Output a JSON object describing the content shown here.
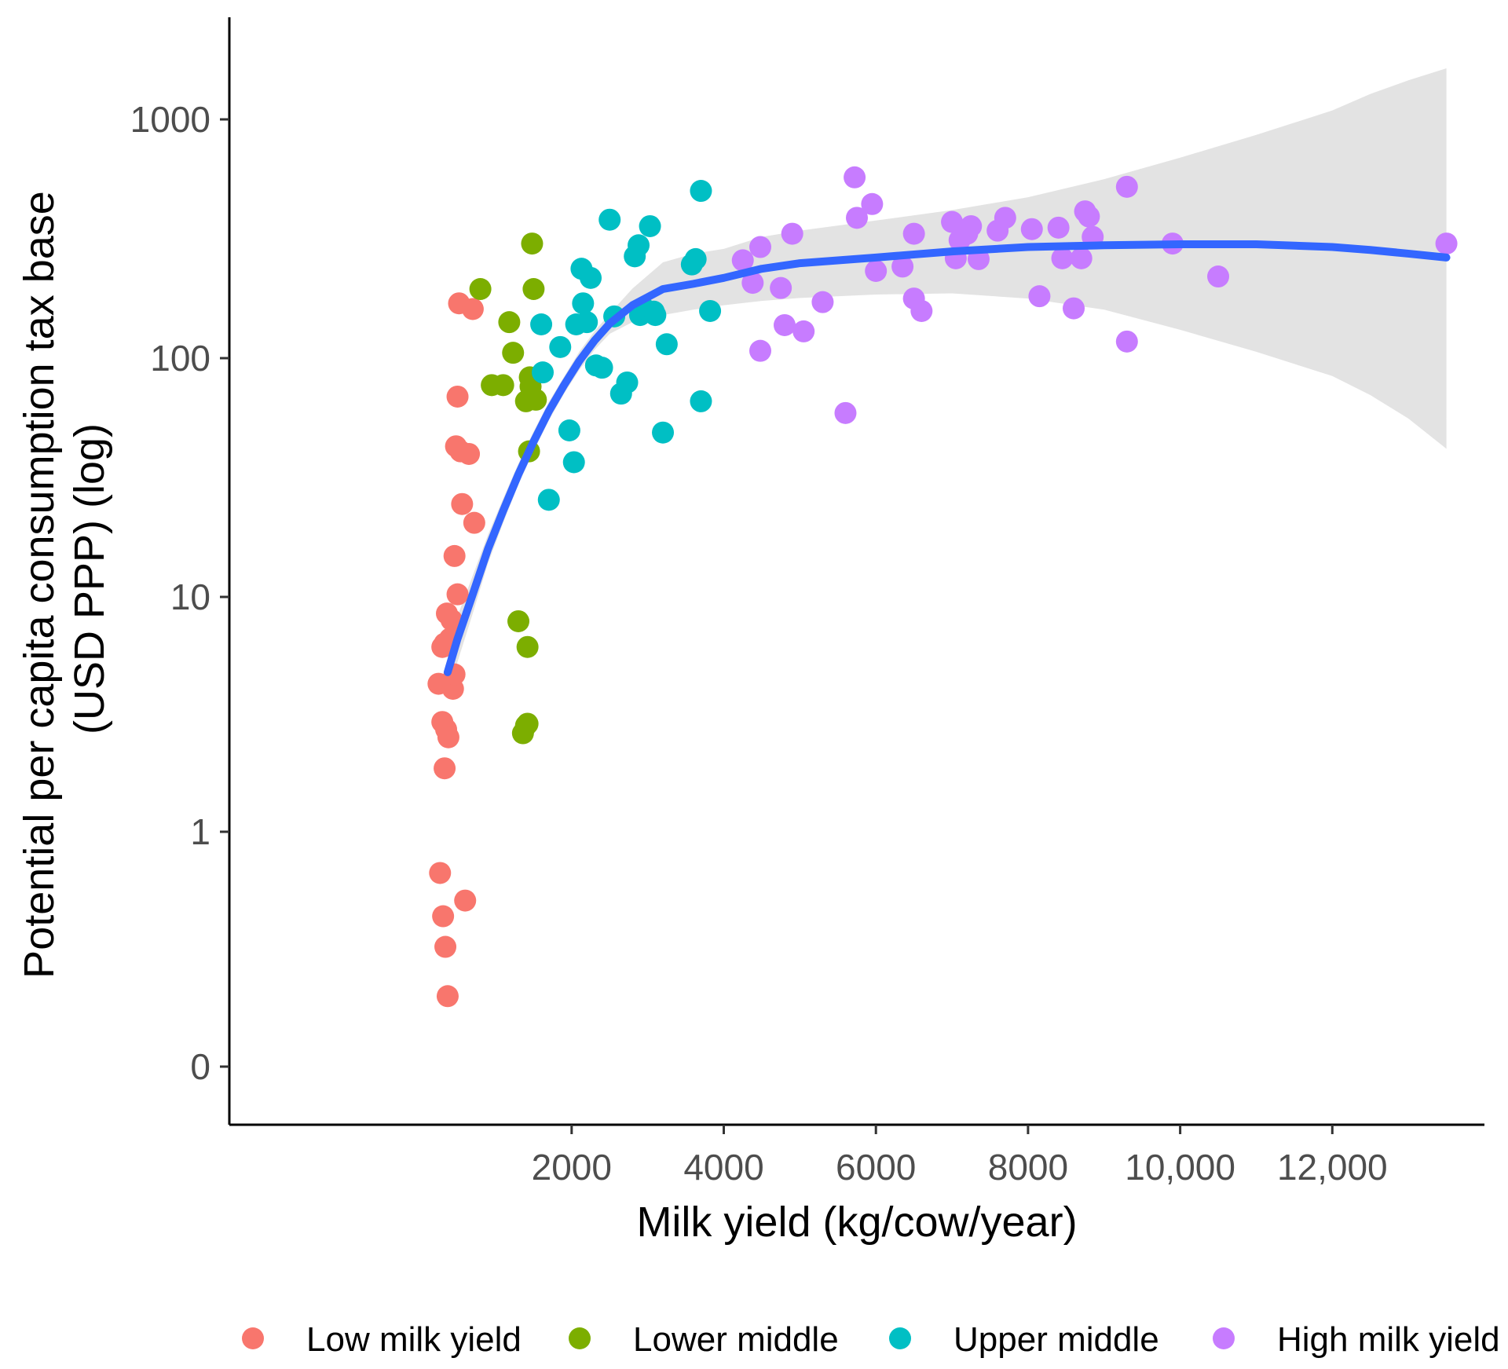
{
  "chart_data": {
    "type": "scatter",
    "xlabel": "Milk yield (kg/cow/year)",
    "ylabel": "Potential per capita consumption tax base (USD PPP) (log)",
    "ylabel_lines": [
      "Potential per capita consumption tax base",
      "(USD PPP) (log)"
    ],
    "xlim": [
      -2500,
      14000
    ],
    "x_ticks": [
      2000,
      4000,
      6000,
      8000,
      10000,
      12000
    ],
    "x_tick_labels": [
      "2000",
      "4000",
      "6000",
      "8000",
      "10,000",
      "12,000"
    ],
    "y_scale": "log",
    "y_ticks": [
      0,
      1,
      10,
      100,
      1000
    ],
    "y_tick_labels": [
      "0",
      "1",
      "10",
      "100",
      "1000"
    ],
    "grid": false,
    "legend_position": "bottom",
    "series": [
      {
        "name": "Low milk yield",
        "color": "#f8766d",
        "points": [
          [
            250,
            4.2
          ],
          [
            270,
            0.68
          ],
          [
            300,
            6.0
          ],
          [
            300,
            2.9
          ],
          [
            310,
            0.41
          ],
          [
            330,
            1.85
          ],
          [
            340,
            0.26
          ],
          [
            350,
            2.7
          ],
          [
            360,
            8.3
          ],
          [
            370,
            0.09
          ],
          [
            380,
            2.5
          ],
          [
            400,
            6.5
          ],
          [
            420,
            7.8
          ],
          [
            440,
            4.0
          ],
          [
            460,
            4.6
          ],
          [
            480,
            42
          ],
          [
            500,
            10
          ],
          [
            500,
            68
          ],
          [
            520,
            168
          ],
          [
            540,
            40
          ],
          [
            560,
            24
          ],
          [
            600,
            0.5
          ],
          [
            650,
            39
          ],
          [
            700,
            159
          ],
          [
            720,
            20
          ],
          [
            460,
            14.5
          ],
          [
            330,
            6.2
          ]
        ]
      },
      {
        "name": "Lower middle",
        "color": "#7cae00",
        "points": [
          [
            800,
            193
          ],
          [
            950,
            76
          ],
          [
            1100,
            76
          ],
          [
            1180,
            140
          ],
          [
            1230,
            104
          ],
          [
            1300,
            7.7
          ],
          [
            1360,
            2.6
          ],
          [
            1400,
            65
          ],
          [
            1420,
            2.85
          ],
          [
            1420,
            6.0
          ],
          [
            1440,
            40
          ],
          [
            1450,
            82
          ],
          [
            1460,
            75
          ],
          [
            1480,
            300
          ],
          [
            1500,
            193
          ],
          [
            1530,
            66
          ],
          [
            1400,
            2.8
          ]
        ]
      },
      {
        "name": "Upper middle",
        "color": "#00bfc4",
        "points": [
          [
            1600,
            137
          ],
          [
            1620,
            86
          ],
          [
            1700,
            25
          ],
          [
            1850,
            110
          ],
          [
            1970,
            49
          ],
          [
            2030,
            36
          ],
          [
            2060,
            137
          ],
          [
            2130,
            235
          ],
          [
            2150,
            168
          ],
          [
            2250,
            215
          ],
          [
            2320,
            92
          ],
          [
            2400,
            90
          ],
          [
            2500,
            378
          ],
          [
            2560,
            148
          ],
          [
            2650,
            70
          ],
          [
            2730,
            78
          ],
          [
            2830,
            265
          ],
          [
            2880,
            295
          ],
          [
            2900,
            150
          ],
          [
            3030,
            355
          ],
          [
            3080,
            155
          ],
          [
            3200,
            48
          ],
          [
            3250,
            113
          ],
          [
            3580,
            245
          ],
          [
            3630,
            258
          ],
          [
            3700,
            500
          ],
          [
            3700,
            65
          ],
          [
            3820,
            156
          ],
          [
            2950,
            160
          ],
          [
            3100,
            150
          ],
          [
            2200,
            140
          ]
        ]
      },
      {
        "name": "High milk yield",
        "color": "#c77cff",
        "points": [
          [
            4250,
            255
          ],
          [
            4380,
            205
          ],
          [
            4480,
            290
          ],
          [
            4480,
            106
          ],
          [
            4750,
            195
          ],
          [
            4800,
            136
          ],
          [
            4900,
            330
          ],
          [
            5050,
            128
          ],
          [
            5300,
            170
          ],
          [
            5600,
            58
          ],
          [
            5720,
            570
          ],
          [
            5750,
            385
          ],
          [
            5950,
            440
          ],
          [
            6000,
            230
          ],
          [
            6350,
            240
          ],
          [
            6500,
            330
          ],
          [
            6500,
            176
          ],
          [
            6600,
            156
          ],
          [
            7000,
            370
          ],
          [
            7050,
            260
          ],
          [
            7100,
            310
          ],
          [
            7200,
            330
          ],
          [
            7250,
            355
          ],
          [
            7350,
            258
          ],
          [
            7600,
            340
          ],
          [
            7700,
            385
          ],
          [
            8050,
            345
          ],
          [
            8150,
            180
          ],
          [
            8400,
            350
          ],
          [
            8450,
            260
          ],
          [
            8600,
            160
          ],
          [
            8700,
            260
          ],
          [
            8750,
            410
          ],
          [
            8800,
            390
          ],
          [
            8850,
            320
          ],
          [
            9300,
            520
          ],
          [
            9300,
            116
          ],
          [
            9900,
            300
          ],
          [
            10500,
            218
          ],
          [
            13500,
            300
          ]
        ]
      }
    ],
    "fit_line": {
      "color": "#3366ff",
      "x": [
        370,
        500,
        700,
        900,
        1100,
        1300,
        1500,
        1700,
        1900,
        2100,
        2300,
        2500,
        2800,
        3200,
        3600,
        4000,
        4500,
        5000,
        6000,
        7000,
        8000,
        9000,
        10000,
        11000,
        12000,
        12500,
        13000,
        13500
      ],
      "y": [
        4.7,
        6.5,
        10,
        15.5,
        22.5,
        32,
        44,
        59,
        76,
        96,
        117,
        138,
        165,
        193,
        203,
        215,
        235,
        248,
        262,
        278,
        290,
        295,
        298,
        298,
        290,
        282,
        272,
        262
      ],
      "band_lower": [
        3.6,
        5.2,
        8.3,
        13.5,
        20,
        29,
        40,
        54,
        70,
        88,
        107,
        125,
        140,
        150,
        158,
        165,
        172,
        177,
        183,
        185,
        176,
        158,
        130,
        105,
        83,
        69,
        55,
        41
      ],
      "band_upper": [
        6.1,
        8.1,
        12,
        17.8,
        25.3,
        35.5,
        48.5,
        64.5,
        82.5,
        105,
        128,
        152,
        194,
        250,
        272,
        285,
        320,
        340,
        375,
        415,
        470,
        560,
        690,
        860,
        1090,
        1280,
        1460,
        1640
      ]
    }
  }
}
